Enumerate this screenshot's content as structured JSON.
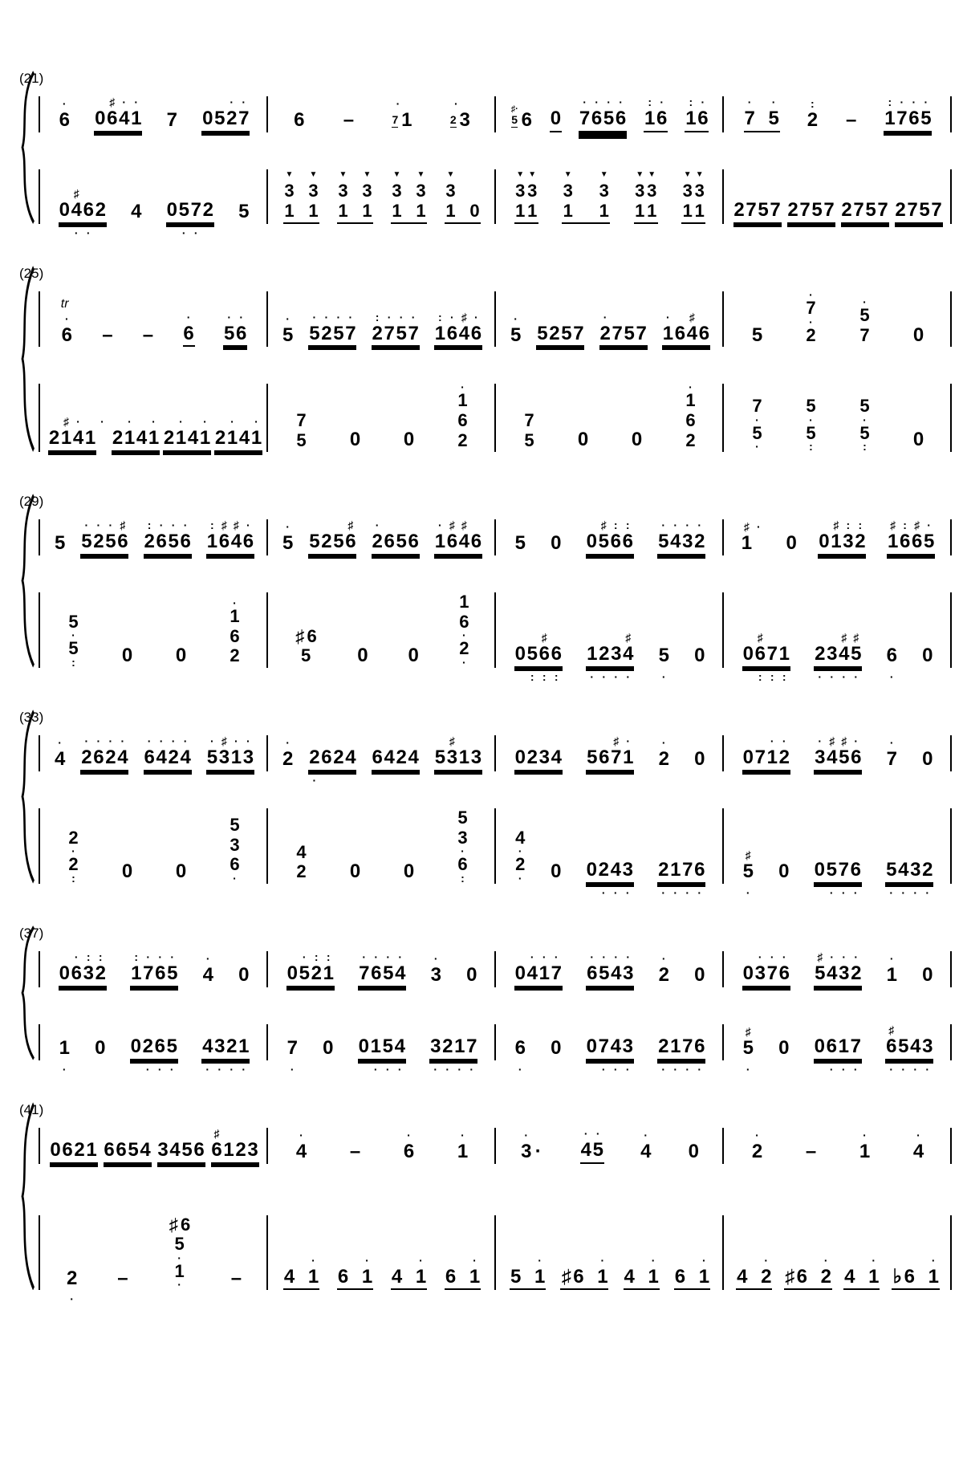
{
  "notation_labels": {
    "s1": "(21)",
    "s2": "(25)",
    "s3": "(29)",
    "s4": "(33)",
    "s5": "(37)",
    "s6": "(41)"
  },
  "symbols": {
    "accent": "▼",
    "sharp": "♯",
    "flat": "♭",
    "octave_dot": "·",
    "double_octave_dot": ":",
    "rest": "0",
    "dash": "–",
    "trill": "tr"
  },
  "systems": [
    {
      "label": "(21)",
      "upper": [
        [
          {
            "d": "·",
            "m": "6"
          },
          {
            "d": " ♯··",
            "m": "0641",
            "u": 2
          },
          {
            "m": "7"
          },
          {
            "d": "  ··",
            "m": "0527",
            "u": 2
          }
        ],
        [
          {
            "m": "6"
          },
          {
            "m": "–"
          },
          {
            "g": "7",
            "d": "·",
            "m": "1"
          },
          {
            "g": "2",
            "d": "·",
            "m": "3"
          }
        ],
        [
          {
            "gd": "♯·",
            "g": "5",
            "m": "6"
          },
          {
            "m": "0",
            "u": 1
          },
          {
            "d": "····",
            "m": "7656",
            "u": 3
          },
          {
            "d": ":·",
            "m": "16",
            "u": 1
          },
          {
            "d": ":·",
            "m": "16",
            "u": 1
          }
        ],
        [
          {
            "d": "· ·",
            "m": "7 5",
            "u": 1
          },
          {
            "d": ":",
            "m": "2"
          },
          {
            "m": "–"
          },
          {
            "d": ":···",
            "m": "1765",
            "u": 2
          }
        ]
      ],
      "lower": [
        [
          {
            "d": " ♯",
            "m": "0462",
            "u": 2,
            "b": " ··"
          },
          {
            "m": "4"
          },
          {
            "m": "0572",
            "u": 2,
            "b": " ··"
          },
          {
            "m": "5"
          }
        ],
        [
          {
            "a": "▼ ▼",
            "s": [
              "3 3",
              "1 1"
            ],
            "u": 1
          },
          {
            "a": "▼ ▼",
            "s": [
              "3 3",
              "1 1"
            ],
            "u": 1
          },
          {
            "a": "▼ ▼",
            "s": [
              "3 3",
              "1 1"
            ],
            "u": 1
          },
          {
            "a": "▼",
            "s": [
              "3  ",
              "1 0"
            ],
            "u": 1
          }
        ],
        [
          {
            "a": "▼▼",
            "s": [
              "33",
              "11"
            ],
            "u": 1
          },
          {
            "a": "▼  ▼",
            "s": [
              "3  3",
              "1  1"
            ],
            "u": 1
          },
          {
            "a": "▼▼",
            "s": [
              "33",
              "11"
            ],
            "u": 1
          },
          {
            "a": "▼▼",
            "s": [
              "33",
              "11"
            ],
            "u": 1
          }
        ],
        [
          {
            "m": "2757",
            "u": 2
          },
          {
            "m": "2757",
            "u": 2
          },
          {
            "m": "2757",
            "u": 2
          },
          {
            "m": "2757",
            "u": 2
          }
        ]
      ]
    },
    {
      "label": "(25)",
      "upper": [
        [
          {
            "it": "tr",
            "d": "·",
            "m": "6"
          },
          {
            "m": "–"
          },
          {
            "m": "–"
          },
          {
            "d": "·",
            "m": "6",
            "u": 1
          },
          {
            "d": "··",
            "m": "56",
            "u": 2
          }
        ],
        [
          {
            "d": "·",
            "m": "5"
          },
          {
            "d": "····",
            "m": "5257",
            "u": 2
          },
          {
            "d": ":···",
            "m": "2757",
            "u": 2
          },
          {
            "d": ":·♯·",
            "m": "1646",
            "u": 2
          }
        ],
        [
          {
            "d": "·",
            "m": "5"
          },
          {
            "m": "5257",
            "u": 2
          },
          {
            "d": "·",
            "m": "2757",
            "u": 2
          },
          {
            "d": "· ♯",
            "m": "1646",
            "u": 2
          }
        ],
        [
          {
            "m": "5"
          },
          {
            "s": [
              "·",
              "7",
              "·",
              "2"
            ]
          },
          {
            "s": [
              "·",
              "5",
              "7"
            ]
          },
          {
            "m": "0"
          }
        ]
      ],
      "lower": [
        [
          {
            "d": " ♯· ·",
            "m": "2141",
            "u": 2
          },
          {
            "d": " · ·",
            "m": "2141",
            "u": 2
          },
          {
            "d": " · ·",
            "m": "2141",
            "u": 2
          },
          {
            "d": " · ·",
            "m": "2141",
            "u": 2
          }
        ],
        [
          {
            "s": [
              "7",
              "5"
            ]
          },
          {
            "m": "0"
          },
          {
            "m": "0"
          },
          {
            "s": [
              "·",
              "1",
              "6",
              "2"
            ]
          }
        ],
        [
          {
            "s": [
              "7",
              "5"
            ]
          },
          {
            "m": "0"
          },
          {
            "m": "0"
          },
          {
            "s": [
              "·",
              "1",
              "6",
              "2"
            ]
          }
        ],
        [
          {
            "s": [
              "7",
              "·",
              "5",
              "·"
            ]
          },
          {
            "s": [
              "5",
              "·",
              "5",
              ":"
            ]
          },
          {
            "s": [
              "5",
              "·",
              "5",
              ":"
            ]
          },
          {
            "m": "0"
          }
        ]
      ]
    },
    {
      "label": "(29)",
      "upper": [
        [
          {
            "m": "5"
          },
          {
            "d": "···♯",
            "m": "5256",
            "u": 2
          },
          {
            "d": ":···",
            "m": "2656",
            "u": 2
          },
          {
            "d": ":♯♯·",
            "m": "1646",
            "u": 2
          }
        ],
        [
          {
            "d": "·",
            "m": "5"
          },
          {
            "d": "   ♯",
            "m": "5256",
            "u": 2
          },
          {
            "d": "·",
            "m": "2656",
            "u": 2
          },
          {
            "d": "·♯♯",
            "m": "1646",
            "u": 2
          }
        ],
        [
          {
            "m": "5"
          },
          {
            "m": "0"
          },
          {
            "d": " ♯::",
            "m": "0566",
            "u": 2
          },
          {
            "d": "····",
            "m": "5432",
            "u": 2
          }
        ],
        [
          {
            "d": "♯·",
            "m": "1"
          },
          {
            "m": "0"
          },
          {
            "d": " ♯::",
            "m": "0132",
            "u": 2
          },
          {
            "d": "♯:♯·",
            "m": "1665",
            "u": 2
          }
        ]
      ],
      "lower": [
        [
          {
            "s": [
              "5",
              "·",
              "5",
              ":"
            ]
          },
          {
            "m": "0"
          },
          {
            "m": "0"
          },
          {
            "s": [
              "·",
              "1",
              "6",
              "2"
            ]
          }
        ],
        [
          {
            "s": [
              "♯6",
              "5"
            ]
          },
          {
            "m": "0"
          },
          {
            "m": "0"
          },
          {
            "s": [
              "1",
              "6",
              "·",
              "2",
              "·"
            ]
          }
        ],
        [
          {
            "d": "  ♯",
            "m": "0566",
            "u": 2,
            "b": " :::"
          },
          {
            "d": "   ♯",
            "m": "1234",
            "u": 2,
            "b": "····"
          },
          {
            "m": "5",
            "b": "·"
          },
          {
            "m": "0"
          }
        ],
        [
          {
            "d": " ♯",
            "m": "0671",
            "u": 2,
            "b": " :::"
          },
          {
            "d": "  ♯♯",
            "m": "2345",
            "u": 2,
            "b": "····"
          },
          {
            "m": "6",
            "b": "·"
          },
          {
            "m": "0"
          }
        ]
      ]
    },
    {
      "label": "(33)",
      "upper": [
        [
          {
            "d": "·",
            "m": "4"
          },
          {
            "d": "····",
            "m": "2624",
            "u": 2
          },
          {
            "d": "····",
            "m": "6424",
            "u": 2
          },
          {
            "d": "·♯··",
            "m": "5313",
            "u": 2
          }
        ],
        [
          {
            "d": "·",
            "m": "2"
          },
          {
            "m": "2624",
            "u": 2,
            "b": "·"
          },
          {
            "m": "6424",
            "u": 2
          },
          {
            "d": " ♯",
            "m": "5313",
            "u": 2
          }
        ],
        [
          {
            "m": "0234",
            "u": 2
          },
          {
            "d": "  ♯·",
            "m": "5671",
            "u": 2
          },
          {
            "d": "·",
            "m": "2"
          },
          {
            "m": "0"
          }
        ],
        [
          {
            "d": "  ··",
            "m": "0712",
            "u": 2
          },
          {
            "d": "·♯♯·",
            "m": "3456",
            "u": 2
          },
          {
            "d": "·",
            "m": "7"
          },
          {
            "m": "0"
          }
        ]
      ],
      "lower": [
        [
          {
            "s": [
              "2",
              "·",
              "2",
              ":"
            ]
          },
          {
            "m": "0"
          },
          {
            "m": "0"
          },
          {
            "s": [
              "5",
              "3",
              "6",
              "·"
            ]
          }
        ],
        [
          {
            "s": [
              "4",
              "2"
            ]
          },
          {
            "m": "0"
          },
          {
            "m": "0"
          },
          {
            "s": [
              "5",
              "3",
              "·",
              "6",
              ":"
            ]
          }
        ],
        [
          {
            "s": [
              "4",
              "·",
              "2",
              "·"
            ]
          },
          {
            "m": "0"
          },
          {
            "m": "0243",
            "u": 2,
            "b": " ···"
          },
          {
            "m": "2176",
            "u": 2,
            "b": "····"
          }
        ],
        [
          {
            "d": "♯",
            "m": "5",
            "b": "·"
          },
          {
            "m": "0"
          },
          {
            "m": "0576",
            "u": 2,
            "b": " ···"
          },
          {
            "m": "5432",
            "u": 2,
            "b": "····"
          }
        ]
      ]
    },
    {
      "label": "(37)",
      "upper": [
        [
          {
            "d": " ·::",
            "m": "0632",
            "u": 2
          },
          {
            "d": ":···",
            "m": "1765",
            "u": 2
          },
          {
            "d": "·",
            "m": "4"
          },
          {
            "m": "0"
          }
        ],
        [
          {
            "d": " ·::",
            "m": "0521",
            "u": 2
          },
          {
            "d": "····",
            "m": "7654",
            "u": 2
          },
          {
            "d": "·",
            "m": "3"
          },
          {
            "m": "0"
          }
        ],
        [
          {
            "d": " ···",
            "m": "0417",
            "u": 2
          },
          {
            "d": "····",
            "m": "6543",
            "u": 2
          },
          {
            "d": "·",
            "m": "2"
          },
          {
            "m": "0"
          }
        ],
        [
          {
            "d": " ···",
            "m": "0376",
            "u": 2
          },
          {
            "d": "♯···",
            "m": "5432",
            "u": 2
          },
          {
            "d": "·",
            "m": "1"
          },
          {
            "m": "0"
          }
        ]
      ],
      "lower": [
        [
          {
            "m": "1",
            "b": "·"
          },
          {
            "m": "0"
          },
          {
            "m": "0265",
            "u": 2,
            "b": " ···"
          },
          {
            "m": "4321",
            "u": 2,
            "b": "····"
          }
        ],
        [
          {
            "m": "7",
            "b": "·"
          },
          {
            "m": "0"
          },
          {
            "m": "0154",
            "u": 2,
            "b": " ···"
          },
          {
            "m": "3217",
            "u": 2,
            "b": "····"
          }
        ],
        [
          {
            "m": "6",
            "b": "·"
          },
          {
            "m": "0"
          },
          {
            "m": "0743",
            "u": 2,
            "b": " ···"
          },
          {
            "m": "2176",
            "u": 2,
            "b": "····"
          }
        ],
        [
          {
            "d": "♯",
            "m": "5",
            "b": "·"
          },
          {
            "m": "0"
          },
          {
            "m": "0617",
            "u": 2,
            "b": " ···"
          },
          {
            "d": "♯",
            "m": "6543",
            "u": 2,
            "b": "····"
          }
        ]
      ]
    },
    {
      "label": "(41)",
      "upper": [
        [
          {
            "m": "0621",
            "u": 2
          },
          {
            "m": "6654",
            "u": 2
          },
          {
            "m": "3456",
            "u": 2
          },
          {
            "d": "♯",
            "m": "6123",
            "u": 2
          }
        ],
        [
          {
            "d": "·",
            "m": "4"
          },
          {
            "m": "–"
          },
          {
            "d": "·",
            "m": "6"
          },
          {
            "d": "·",
            "m": "1"
          }
        ],
        [
          {
            "d": "·",
            "m": "3·"
          },
          {
            "d": "··",
            "m": "45",
            "u": 1
          },
          {
            "d": "·",
            "m": "4"
          },
          {
            "m": "0"
          }
        ],
        [
          {
            "d": "·",
            "m": "2"
          },
          {
            "m": "–"
          },
          {
            "d": "·",
            "m": "1"
          },
          {
            "d": "·",
            "m": "4"
          }
        ]
      ],
      "lower": [
        [
          {
            "m": "2",
            "b": "·"
          },
          {
            "m": "–"
          },
          {
            "s": [
              "♯6",
              "5",
              "·",
              "1",
              "·"
            ]
          },
          {
            "m": "–"
          }
        ],
        [
          {
            "d": "  ·",
            "m": "4 1",
            "u": 1
          },
          {
            "d": "  ·",
            "m": "6 1",
            "u": 1
          },
          {
            "d": "  ·",
            "m": "4 1",
            "u": 1
          },
          {
            "d": "  ·",
            "m": "6 1",
            "u": 1
          }
        ],
        [
          {
            "d": "  ·",
            "m": "5 1",
            "u": 1
          },
          {
            "d": "   ·",
            "m": "♯6 1",
            "u": 1
          },
          {
            "d": "  ·",
            "m": "4 1",
            "u": 1
          },
          {
            "d": "  ·",
            "m": "6 1",
            "u": 1
          }
        ],
        [
          {
            "d": "  ·",
            "m": "4 2",
            "u": 1
          },
          {
            "d": "   ·",
            "m": "♯6 2",
            "u": 1
          },
          {
            "d": "  ·",
            "m": "4 1",
            "u": 1
          },
          {
            "d": "   ·",
            "m": "♭6 1",
            "u": 1
          }
        ]
      ]
    }
  ]
}
